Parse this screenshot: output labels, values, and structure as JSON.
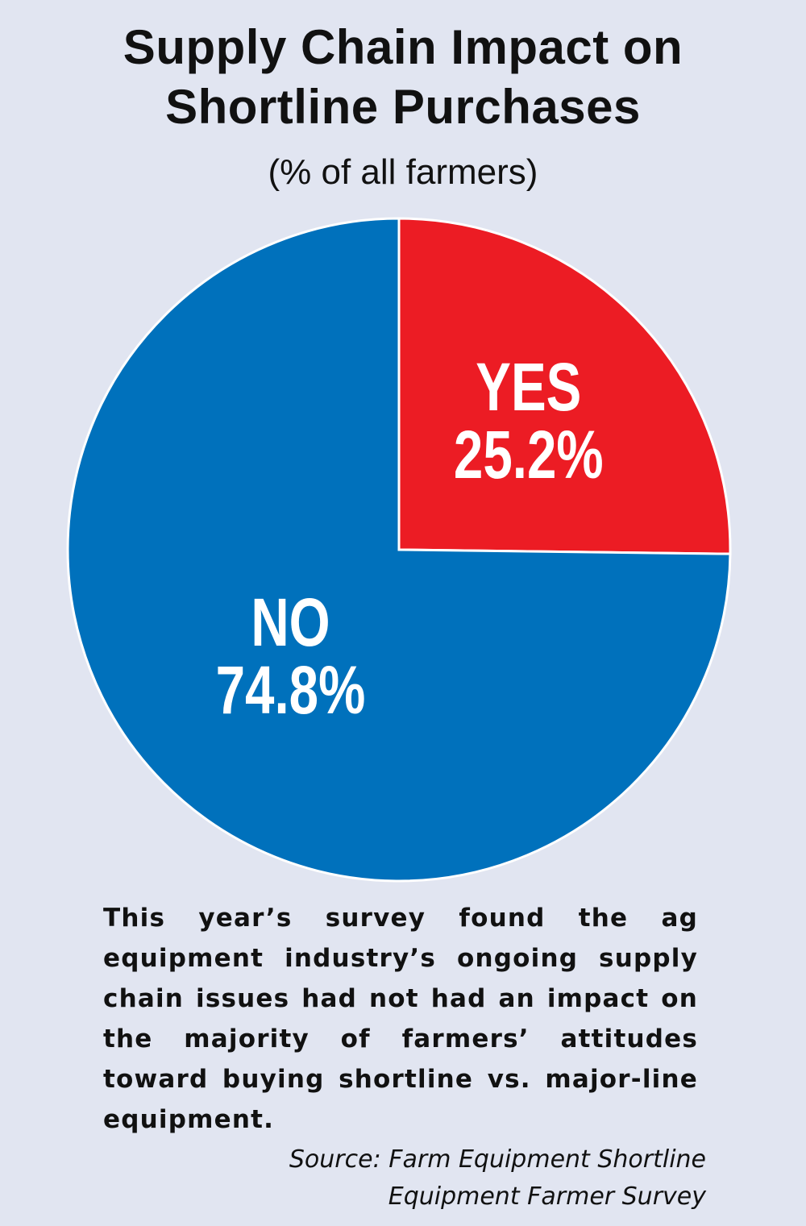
{
  "chart_data": {
    "type": "pie",
    "title_lines": [
      "Supply Chain Impact on",
      "Shortline Purchases"
    ],
    "subtitle": "(% of all farmers)",
    "slices": [
      {
        "label": "YES",
        "value": 25.2,
        "value_label": "25.2%",
        "color": "#ec1c24"
      },
      {
        "label": "NO",
        "value": 74.8,
        "value_label": "74.8%",
        "color": "#0071bc"
      }
    ],
    "start": "12 o'clock",
    "direction": "clockwise",
    "edge_color": "#ffffff"
  },
  "caption": "This year’s survey found the ag equipment industry’s ongoing supply chain issues had not had an impact on the majority of farmers’ attitudes toward buying shortline vs. major-line equipment.",
  "source_lines": [
    "Source: Farm Equipment Shortline",
    "Equipment Farmer Survey"
  ]
}
